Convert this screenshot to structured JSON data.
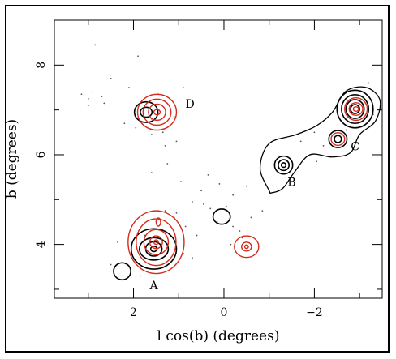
{
  "chart_data": {
    "type": "contour",
    "xlabel": "l cos(b) (degrees)",
    "ylabel": "b (degrees)",
    "xlim": [
      3.75,
      -3.5
    ],
    "ylim": [
      2.8,
      9.0
    ],
    "x_ticks": [
      2,
      0,
      -2
    ],
    "x_tick_labels": [
      "2",
      "0",
      "−2"
    ],
    "y_ticks": [
      4,
      6,
      8
    ],
    "y_tick_labels": [
      "4",
      "6",
      "8"
    ],
    "grid": false,
    "legend": "none",
    "colors": {
      "black_contours": "#000000",
      "red_contours": "#d62a1a",
      "points": "#555555"
    },
    "regions": [
      {
        "label": "A",
        "x": 1.55,
        "y": 3.0
      },
      {
        "label": "B",
        "x": -1.5,
        "y": 5.3
      },
      {
        "label": "C",
        "x": -2.9,
        "y": 6.1
      },
      {
        "label": "D",
        "x": 0.75,
        "y": 7.05
      }
    ],
    "contour_groups": [
      {
        "color": "black",
        "cx": 1.72,
        "cy": 6.95,
        "levels": [
          [
            0.26,
            0.23
          ],
          [
            0.13,
            0.11
          ]
        ]
      },
      {
        "color": "red",
        "cx": 1.48,
        "cy": 6.95,
        "levels": [
          [
            0.43,
            0.4
          ],
          [
            0.31,
            0.29
          ],
          [
            0.19,
            0.18
          ],
          [
            0.07,
            0.06
          ]
        ]
      },
      {
        "color": "black",
        "cx": 1.55,
        "cy": 3.9,
        "levels": [
          [
            0.5,
            0.45
          ],
          [
            0.32,
            0.25
          ],
          [
            0.18,
            0.16
          ],
          [
            0.07,
            0.06
          ]
        ]
      },
      {
        "color": "red",
        "cx": 1.5,
        "cy": 4.05,
        "levels": [
          [
            0.62,
            0.7
          ],
          [
            0.44,
            0.52
          ],
          [
            0.27,
            0.28
          ],
          [
            0.14,
            0.14
          ],
          [
            0.05,
            0.05
          ]
        ]
      },
      {
        "color": "red",
        "cx": 1.45,
        "cy": 4.5,
        "levels": [
          [
            0.05,
            0.09
          ]
        ]
      },
      {
        "color": "black",
        "cx": 2.25,
        "cy": 3.4,
        "levels": [
          [
            0.19,
            0.19
          ]
        ]
      },
      {
        "color": "black",
        "cx": 0.05,
        "cy": 4.62,
        "levels": [
          [
            0.19,
            0.17
          ]
        ]
      },
      {
        "color": "red",
        "cx": -0.5,
        "cy": 3.95,
        "levels": [
          [
            0.27,
            0.24
          ],
          [
            0.11,
            0.1
          ],
          [
            0.04,
            0.04
          ]
        ]
      },
      {
        "color": "black",
        "cx": -1.32,
        "cy": 5.77,
        "levels": [
          [
            0.2,
            0.2
          ],
          [
            0.12,
            0.12
          ],
          [
            0.05,
            0.05
          ]
        ]
      },
      {
        "color": "black",
        "cx": -2.9,
        "cy": 7.02,
        "levels": [
          [
            0.4,
            0.42
          ],
          [
            0.3,
            0.32
          ],
          [
            0.2,
            0.21
          ],
          [
            0.1,
            0.1
          ]
        ]
      },
      {
        "color": "red",
        "cx": -2.92,
        "cy": 7.02,
        "levels": [
          [
            0.25,
            0.25
          ],
          [
            0.15,
            0.14
          ],
          [
            0.06,
            0.05
          ]
        ]
      },
      {
        "color": "black",
        "cx": -2.52,
        "cy": 6.35,
        "levels": [
          [
            0.2,
            0.19
          ],
          [
            0.08,
            0.08
          ]
        ]
      },
      {
        "color": "red",
        "cx": -2.52,
        "cy": 6.35,
        "levels": [
          [
            0.15,
            0.14
          ]
        ]
      }
    ],
    "envelope_path": [
      [
        -1.0,
        5.2
      ],
      [
        -0.8,
        5.7
      ],
      [
        -1.0,
        6.25
      ],
      [
        -1.6,
        6.45
      ],
      [
        -2.05,
        6.65
      ],
      [
        -2.4,
        6.95
      ],
      [
        -2.7,
        7.42
      ],
      [
        -3.15,
        7.5
      ],
      [
        -3.45,
        7.22
      ],
      [
        -3.35,
        6.75
      ],
      [
        -3.0,
        6.45
      ],
      [
        -2.8,
        6.05
      ],
      [
        -2.4,
        5.95
      ],
      [
        -1.9,
        6.0
      ],
      [
        -1.55,
        5.6
      ],
      [
        -1.3,
        5.25
      ],
      [
        -1.05,
        5.15
      ]
    ],
    "points": [
      [
        3.15,
        7.35
      ],
      [
        3.0,
        7.25
      ],
      [
        2.9,
        7.4
      ],
      [
        2.7,
        7.3
      ],
      [
        2.65,
        7.15
      ],
      [
        3.0,
        7.1
      ],
      [
        2.85,
        8.45
      ],
      [
        2.5,
        7.7
      ],
      [
        2.1,
        7.5
      ],
      [
        1.9,
        8.2
      ],
      [
        2.2,
        6.7
      ],
      [
        1.95,
        6.6
      ],
      [
        1.6,
        6.45
      ],
      [
        1.35,
        6.5
      ],
      [
        1.1,
        6.85
      ],
      [
        1.05,
        6.3
      ],
      [
        1.3,
        6.2
      ],
      [
        0.9,
        7.5
      ],
      [
        1.6,
        5.6
      ],
      [
        1.25,
        5.8
      ],
      [
        0.95,
        5.4
      ],
      [
        0.7,
        4.95
      ],
      [
        0.45,
        4.9
      ],
      [
        0.3,
        4.8
      ],
      [
        0.15,
        4.5
      ],
      [
        -0.2,
        4.4
      ],
      [
        -0.35,
        4.3
      ],
      [
        -0.4,
        4.15
      ],
      [
        -0.2,
        5.1
      ],
      [
        -0.5,
        5.3
      ],
      [
        -0.6,
        4.6
      ],
      [
        -0.85,
        4.75
      ],
      [
        0.6,
        4.2
      ],
      [
        0.85,
        4.4
      ],
      [
        1.05,
        4.7
      ],
      [
        1.1,
        4.6
      ],
      [
        0.9,
        3.8
      ],
      [
        0.7,
        3.7
      ],
      [
        1.95,
        3.65
      ],
      [
        2.35,
        4.05
      ],
      [
        2.5,
        3.55
      ],
      [
        0.5,
        5.2
      ],
      [
        -0.05,
        4.85
      ],
      [
        -1.7,
        6.3
      ],
      [
        -2.0,
        6.5
      ],
      [
        -2.2,
        6.2
      ],
      [
        -2.05,
        5.85
      ],
      [
        -2.7,
        6.55
      ],
      [
        -3.2,
        7.6
      ],
      [
        -3.3,
        6.9
      ],
      [
        1.85,
        3.3
      ],
      [
        1.3,
        4.75
      ],
      [
        1.75,
        4.2
      ],
      [
        -0.15,
        4.0
      ],
      [
        0.35,
        5.55
      ],
      [
        0.1,
        5.35
      ],
      [
        1.45,
        7.35
      ],
      [
        1.6,
        6.8
      ]
    ]
  }
}
